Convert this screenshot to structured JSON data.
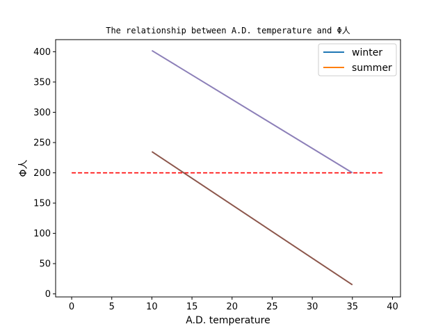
{
  "chart_data": {
    "type": "line",
    "title": "The relationship between A.D. temperature and  Φ人",
    "xlabel": "A.D. temperature",
    "ylabel": "Φ人",
    "xlim": [
      -2,
      41
    ],
    "ylim": [
      -5,
      420
    ],
    "xticks": [
      0,
      5,
      10,
      15,
      20,
      25,
      30,
      35,
      40
    ],
    "yticks": [
      0,
      50,
      100,
      150,
      200,
      250,
      300,
      350,
      400
    ],
    "grid": false,
    "legend_position": "top-right",
    "legend": [
      {
        "label": "winter",
        "color": "#1f77b4"
      },
      {
        "label": "summer",
        "color": "#ff7f0e"
      }
    ],
    "series": [
      {
        "color": "#8c7fb8",
        "x": [
          10,
          35
        ],
        "y": [
          402,
          200
        ]
      },
      {
        "color": "#8c564b",
        "x": [
          10,
          35
        ],
        "y": [
          235,
          15
        ]
      }
    ],
    "reference_line": {
      "y": 200,
      "x": [
        0,
        39
      ],
      "color": "#ff0000",
      "style": "dashed"
    }
  }
}
